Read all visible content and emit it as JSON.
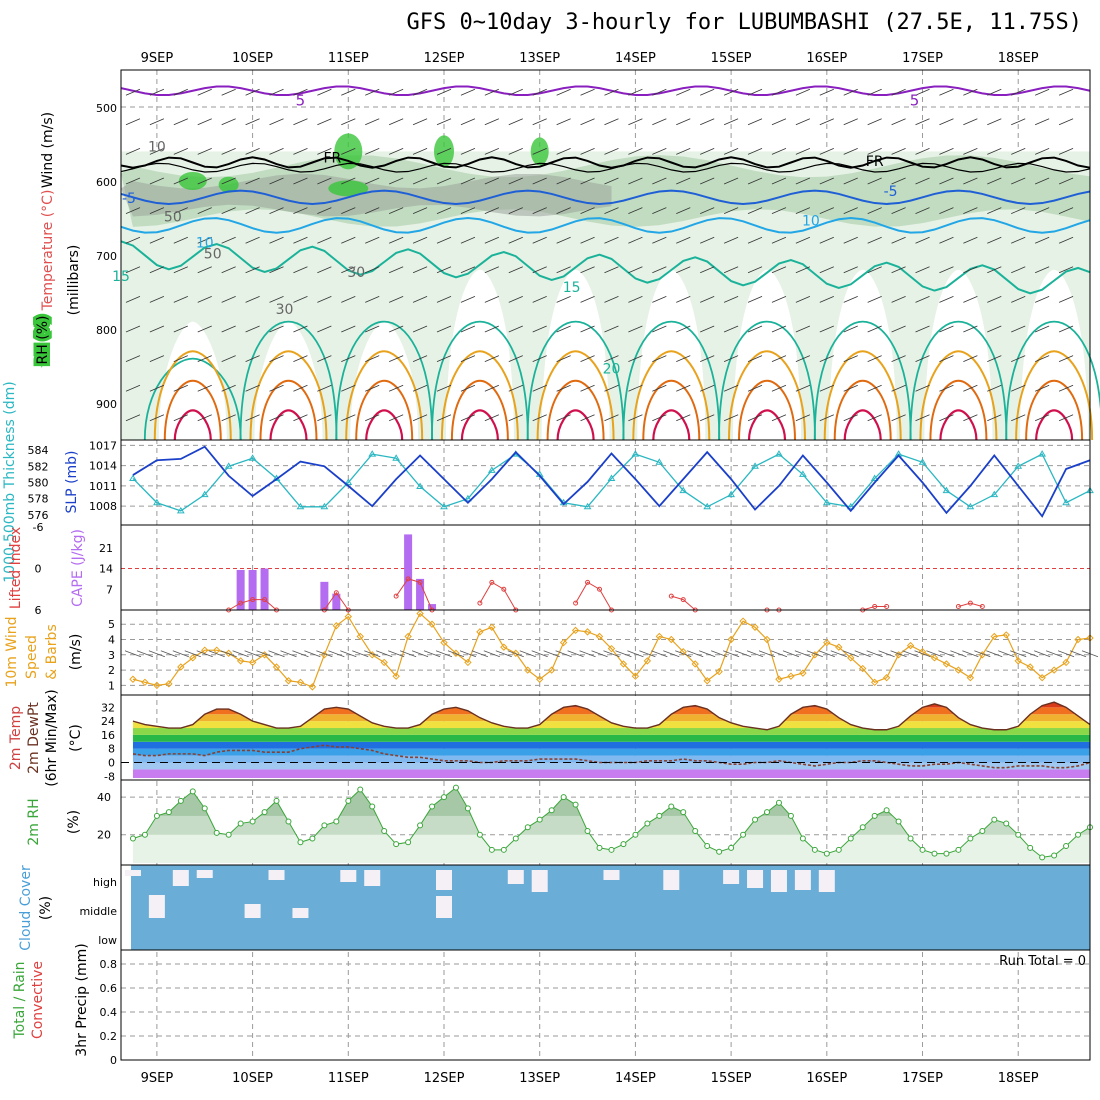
{
  "title": "GFS 0~10day 3-hourly for LUBUMBASHI (27.5E, 11.75S)",
  "colors": {
    "rh_light": "#e6f2e6",
    "rh_mid": "#bcd9bc",
    "rh_gray": "#9aa49a",
    "rh_green": "#3ac63a",
    "temp_purple": "#8a1fbf",
    "temp_blue": "#1f5fd6",
    "temp_lightblue": "#22a6e6",
    "temp_teal": "#1bb29a",
    "temp_orange": "#e8a21c",
    "temp_darkorange": "#e06a10",
    "temp_red": "#d0104c",
    "slp": "#1a3fc9",
    "thickness": "#2ab7c2",
    "cape": "#b46cf0",
    "lifted": "#e04040",
    "wind_speed": "#e8a21c",
    "rh2m": "#3aa63a",
    "cloud": "#6aaed8",
    "grid": "#9a9a9a"
  },
  "chart_data": [
    {
      "type": "heatmap",
      "panel": "upper-air",
      "ylabel_lines": [
        "Wind (m/s)",
        "Temperature (°C)",
        "(millibars)",
        "RH (%)"
      ],
      "y_ticks": [
        500,
        600,
        700,
        800,
        900
      ],
      "ylim": [
        450,
        950
      ],
      "contour_labels": [
        "5",
        "5",
        "FR",
        "FR",
        "-5",
        "-5",
        "10",
        "10",
        "15",
        "15",
        "20",
        "50",
        "50",
        "30",
        "30",
        "10"
      ],
      "freezing_level_mb": 575,
      "grid": true
    },
    {
      "type": "line",
      "panel": "slp-thickness",
      "ylabel_left": "1000-500mb Thickness (dm)",
      "ylabel_right": "SLP (mb)",
      "left_ticks": [
        576,
        578,
        580,
        582,
        584
      ],
      "right_ticks": [
        1008,
        1011,
        1014,
        1017
      ],
      "left_lim": [
        575,
        585
      ],
      "right_lim": [
        1005.5,
        1017.5
      ],
      "x_hours": [
        0,
        6,
        12,
        18,
        24,
        30,
        36,
        42,
        48,
        54,
        60,
        66,
        72,
        78,
        84,
        90,
        96,
        102,
        108,
        114,
        120,
        126,
        132,
        138,
        144,
        150,
        156,
        162,
        168,
        174,
        180,
        186,
        192,
        198,
        204,
        210,
        216,
        222,
        228,
        234,
        240
      ],
      "slp": [
        1012.6,
        1014.8,
        1015.0,
        1016.8,
        1012.5,
        1009.5,
        1012.0,
        1014.6,
        1013.9,
        1011.0,
        1008.0,
        1012.0,
        1015.5,
        1012.0,
        1008.5,
        1012.0,
        1016.0,
        1012.5,
        1008.3,
        1011.6,
        1015.8,
        1012.0,
        1008.0,
        1012.0,
        1016.0,
        1012.0,
        1007.5,
        1011.0,
        1015.5,
        1011.5,
        1007.3,
        1011.5,
        1015.5,
        1011.5,
        1007.0,
        1011.0,
        1015.5,
        1011.0,
        1006.5,
        1013.5,
        1014.8
      ],
      "thickness": [
        580.5,
        577.5,
        576.5,
        578.5,
        582.0,
        583.0,
        580.5,
        577.0,
        577.0,
        580.0,
        583.5,
        583.0,
        579.5,
        577.0,
        578.0,
        581.5,
        583.5,
        581.0,
        577.5,
        577.0,
        580.5,
        583.5,
        582.5,
        579.0,
        577.0,
        578.5,
        582.0,
        583.5,
        581.0,
        577.5,
        577.0,
        580.5,
        583.5,
        582.5,
        579.0,
        577.0,
        578.5,
        582.0,
        583.5,
        577.5,
        579.0
      ]
    },
    {
      "type": "bar",
      "panel": "cape-lifted-index",
      "ylabel_left": "Lifted Index",
      "ylabel_right": "CAPE (J/kg)",
      "cape_ticks": [
        7,
        14,
        21
      ],
      "li_ticks": [
        6,
        0,
        -6
      ],
      "cape_bars": [
        {
          "hour": 27,
          "value": 13.5
        },
        {
          "hour": 30,
          "value": 13.5
        },
        {
          "hour": 33,
          "value": 14.0
        },
        {
          "hour": 48,
          "value": 9.5
        },
        {
          "hour": 51,
          "value": 5.5
        },
        {
          "hour": 69,
          "value": 25.5
        },
        {
          "hour": 72,
          "value": 10.5
        },
        {
          "hour": 75,
          "value": 2.0
        }
      ],
      "lifted_index": [
        {
          "hour": 24,
          "value": 6
        },
        {
          "hour": 27,
          "value": 5
        },
        {
          "hour": 30,
          "value": 4.5
        },
        {
          "hour": 33,
          "value": 4.5
        },
        {
          "hour": 36,
          "value": 6
        },
        {
          "hour": 48,
          "value": 6
        },
        {
          "hour": 51,
          "value": 3.5
        },
        {
          "hour": 54,
          "value": 6
        },
        {
          "hour": 66,
          "value": 4
        },
        {
          "hour": 69,
          "value": 1.5
        },
        {
          "hour": 72,
          "value": 2
        },
        {
          "hour": 75,
          "value": 6
        },
        {
          "hour": 87,
          "value": 5
        },
        {
          "hour": 90,
          "value": 2
        },
        {
          "hour": 93,
          "value": 3
        },
        {
          "hour": 96,
          "value": 6
        },
        {
          "hour": 111,
          "value": 5
        },
        {
          "hour": 114,
          "value": 2
        },
        {
          "hour": 117,
          "value": 3
        },
        {
          "hour": 120,
          "value": 6
        },
        {
          "hour": 135,
          "value": 4
        },
        {
          "hour": 138,
          "value": 4.5
        },
        {
          "hour": 141,
          "value": 6
        },
        {
          "hour": 159,
          "value": 6
        },
        {
          "hour": 162,
          "value": 6
        },
        {
          "hour": 183,
          "value": 6
        },
        {
          "hour": 186,
          "value": 5.5
        },
        {
          "hour": 189,
          "value": 5.5
        },
        {
          "hour": 207,
          "value": 5.5
        },
        {
          "hour": 210,
          "value": 5
        },
        {
          "hour": 213,
          "value": 5.5
        }
      ]
    },
    {
      "type": "line",
      "panel": "10m-wind",
      "ylabel": "10m Wind Speed & Barbs (m/s)",
      "y_ticks": [
        1,
        2,
        3,
        4,
        5
      ],
      "ylim": [
        0.5,
        5.8
      ],
      "x_hours": [
        0,
        3,
        6,
        9,
        12,
        15,
        18,
        21,
        24,
        27,
        30,
        33,
        36,
        39,
        42,
        45,
        48,
        51,
        54,
        57,
        60,
        63,
        66,
        69,
        72,
        75,
        78,
        81,
        84,
        87,
        90,
        93,
        96,
        99,
        102,
        105,
        108,
        111,
        114,
        117,
        120,
        123,
        126,
        129,
        132,
        135,
        138,
        141,
        144,
        147,
        150,
        153,
        156,
        159,
        162,
        165,
        168,
        171,
        174,
        177,
        180,
        183,
        186,
        189,
        192,
        195,
        198,
        201,
        204,
        207,
        210,
        213,
        216,
        219,
        222,
        225,
        228,
        231,
        234,
        237,
        240
      ],
      "speed": [
        1.4,
        1.2,
        1.0,
        1.1,
        2.2,
        2.8,
        3.3,
        3.3,
        3.1,
        2.6,
        2.5,
        3.0,
        2.2,
        1.3,
        1.2,
        0.9,
        3.0,
        4.9,
        5.5,
        4.2,
        3.0,
        2.5,
        1.6,
        4.2,
        5.7,
        5.0,
        3.8,
        3.1,
        2.5,
        4.5,
        4.8,
        3.5,
        3.1,
        2.0,
        1.4,
        2.0,
        3.8,
        4.6,
        4.5,
        4.2,
        3.4,
        2.4,
        1.6,
        2.6,
        4.2,
        4.0,
        3.2,
        2.4,
        1.3,
        1.9,
        4.0,
        5.2,
        4.8,
        4.0,
        1.4,
        1.6,
        1.8,
        3.0,
        3.8,
        3.5,
        2.8,
        2.1,
        1.2,
        1.5,
        3.0,
        3.6,
        3.2,
        2.8,
        2.4,
        2.0,
        1.5,
        3.0,
        4.2,
        4.3,
        2.6,
        2.2,
        1.5,
        2.0,
        2.5,
        4.0,
        4.1
      ]
    },
    {
      "type": "area",
      "panel": "2m-temp",
      "ylabel": "2m Temp 2m DewPt (6hr Min/Max) (°C)",
      "y_ticks": [
        -8,
        0,
        8,
        16,
        24,
        32
      ],
      "ylim": [
        -9,
        38
      ],
      "x_hours": [
        0,
        3,
        6,
        9,
        12,
        15,
        18,
        21,
        24,
        27,
        30,
        33,
        36,
        39,
        42,
        45,
        48,
        51,
        54,
        57,
        60,
        63,
        66,
        69,
        72,
        75,
        78,
        81,
        84,
        87,
        90,
        93,
        96,
        99,
        102,
        105,
        108,
        111,
        114,
        117,
        120,
        123,
        126,
        129,
        132,
        135,
        138,
        141,
        144,
        147,
        150,
        153,
        156,
        159,
        162,
        165,
        168,
        171,
        174,
        177,
        180,
        183,
        186,
        189,
        192,
        195,
        198,
        201,
        204,
        207,
        210,
        213,
        216,
        219,
        222,
        225,
        228,
        231,
        234,
        237,
        240
      ],
      "temp": [
        24,
        22,
        21,
        20,
        20,
        22,
        28,
        31,
        31,
        28,
        24,
        22,
        20,
        20,
        21,
        26,
        31,
        32,
        31,
        27,
        23,
        21,
        20,
        20,
        22,
        28,
        31,
        32,
        30,
        26,
        23,
        21,
        20,
        20,
        22,
        28,
        32,
        33,
        31,
        27,
        23,
        21,
        20,
        20,
        22,
        28,
        32,
        33,
        31,
        26,
        23,
        21,
        20,
        19,
        21,
        28,
        32,
        33,
        31,
        26,
        22,
        20,
        19,
        19,
        21,
        27,
        32,
        34,
        32,
        26,
        22,
        20,
        19,
        19,
        21,
        28,
        33,
        35,
        32,
        27,
        22
      ],
      "dewpt": [
        5,
        4,
        4,
        5,
        5,
        5,
        4,
        6,
        7,
        7,
        7,
        6,
        6,
        6,
        8,
        9,
        10,
        9,
        9,
        8,
        7,
        5,
        4,
        3,
        3,
        2,
        1,
        1,
        1,
        0,
        0,
        1,
        1,
        1,
        2,
        2,
        2,
        2,
        1,
        0,
        0,
        0,
        0,
        1,
        1,
        1,
        2,
        1,
        1,
        0,
        -1,
        -1,
        0,
        0,
        1,
        0,
        -1,
        -2,
        -1,
        0,
        0,
        1,
        1,
        0,
        -1,
        -2,
        -2,
        -1,
        -1,
        0,
        -1,
        -2,
        -3,
        -3,
        -2,
        -2,
        -2,
        -3,
        -3,
        -2,
        0
      ]
    },
    {
      "type": "area",
      "panel": "2m-rh",
      "ylabel": "2m RH (%)",
      "y_ticks": [
        20,
        40
      ],
      "ylim": [
        5,
        48
      ],
      "x_hours": [
        0,
        3,
        6,
        9,
        12,
        15,
        18,
        21,
        24,
        27,
        30,
        33,
        36,
        39,
        42,
        45,
        48,
        51,
        54,
        57,
        60,
        63,
        66,
        69,
        72,
        75,
        78,
        81,
        84,
        87,
        90,
        93,
        96,
        99,
        102,
        105,
        108,
        111,
        114,
        117,
        120,
        123,
        126,
        129,
        132,
        135,
        138,
        141,
        144,
        147,
        150,
        153,
        156,
        159,
        162,
        165,
        168,
        171,
        174,
        177,
        180,
        183,
        186,
        189,
        192,
        195,
        198,
        201,
        204,
        207,
        210,
        213,
        216,
        219,
        222,
        225,
        228,
        231,
        234,
        237,
        240
      ],
      "rh": [
        18,
        20,
        30,
        32,
        38,
        43,
        34,
        21,
        20,
        26,
        27,
        32,
        38,
        27,
        16,
        18,
        25,
        27,
        38,
        44,
        35,
        22,
        15,
        16,
        25,
        35,
        40,
        45,
        34,
        20,
        12,
        12,
        18,
        24,
        28,
        33,
        40,
        36,
        22,
        13,
        12,
        15,
        20,
        26,
        30,
        35,
        32,
        22,
        14,
        11,
        13,
        20,
        28,
        32,
        37,
        30,
        18,
        12,
        10,
        12,
        18,
        24,
        30,
        33,
        27,
        18,
        12,
        10,
        10,
        12,
        18,
        22,
        28,
        26,
        20,
        13,
        8,
        9,
        14,
        20,
        24
      ]
    },
    {
      "type": "heatmap",
      "panel": "cloud-cover",
      "ylabel": "Cloud Cover (%)",
      "levels": [
        "high",
        "middle",
        "low"
      ]
    },
    {
      "type": "bar",
      "panel": "precip",
      "ylabel_left": "Total / Rain",
      "ylabel_left2": "Convective",
      "ylabel": "3hr Precip (mm)",
      "y_ticks": [
        0,
        0.2,
        0.4,
        0.6,
        0.8
      ],
      "ylim": [
        0,
        0.9
      ],
      "run_total": "Run Total = 0",
      "values": []
    }
  ],
  "dates": [
    "9SEP",
    "10SEP",
    "11SEP",
    "12SEP",
    "13SEP",
    "14SEP",
    "15SEP",
    "16SEP",
    "17SEP",
    "18SEP"
  ]
}
